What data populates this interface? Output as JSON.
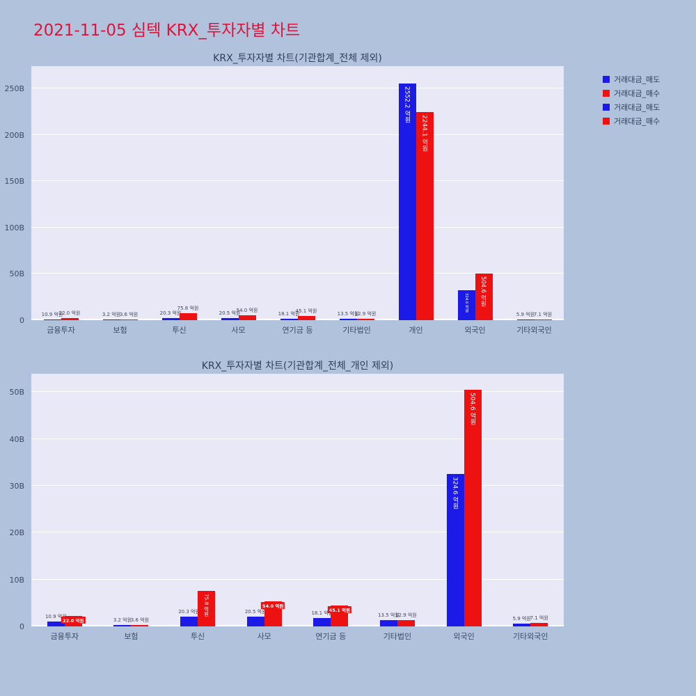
{
  "page": {
    "title": "2021-11-05 심텍 KRX_투자자별 차트",
    "title_color": "#dc143c",
    "background": "#b0c2dc"
  },
  "legend": {
    "entries": [
      {
        "label": "거래대금_매도",
        "color": "#1b1ae6"
      },
      {
        "label": "거래대금_매수",
        "color": "#ee1111"
      },
      {
        "label": "거래대금_매도",
        "color": "#1b1ae6"
      },
      {
        "label": "거래대금_매수",
        "color": "#ee1111"
      }
    ]
  },
  "chart_data": [
    {
      "type": "bar",
      "title": "KRX_투자자별 차트(기관합계_전체 제외)",
      "unit": "억원",
      "categories": [
        "금융투자",
        "보험",
        "투신",
        "사모",
        "연기금 등",
        "기타법인",
        "개인",
        "외국인",
        "기타외국인"
      ],
      "series": [
        {
          "name": "거래대금_매도",
          "color": "#1b1ae6",
          "values_eokwon": [
            10.9,
            3.2,
            20.3,
            20.5,
            18.1,
            13.5,
            2552.2,
            324.6,
            5.9
          ]
        },
        {
          "name": "거래대금_매수",
          "color": "#ee1111",
          "values_eokwon": [
            22.0,
            3.6,
            75.8,
            54.0,
            45.1,
            12.9,
            2244.1,
            504.6,
            7.1
          ]
        }
      ],
      "yticks": [
        {
          "label": "0",
          "b": 0
        },
        {
          "label": "50B",
          "b": 50
        },
        {
          "label": "100B",
          "b": 100
        },
        {
          "label": "150B",
          "b": 150
        },
        {
          "label": "200B",
          "b": 200
        },
        {
          "label": "250B",
          "b": 250
        }
      ],
      "ylim_b": [
        0,
        274
      ],
      "plot_bg": "#e8e8f6",
      "grid": true,
      "legend_position": "right-top"
    },
    {
      "type": "bar",
      "title": "KRX_투자자별 차트(기관합계_전체_개인 제외)",
      "unit": "억원",
      "categories": [
        "금융투자",
        "보험",
        "투신",
        "사모",
        "연기금 등",
        "기타법인",
        "외국인",
        "기타외국인"
      ],
      "series": [
        {
          "name": "거래대금_매도",
          "color": "#1b1ae6",
          "values_eokwon": [
            10.9,
            3.2,
            20.3,
            20.5,
            18.1,
            13.5,
            324.6,
            5.9
          ]
        },
        {
          "name": "거래대금_매수",
          "color": "#ee1111",
          "values_eokwon": [
            22.0,
            3.6,
            75.8,
            54.0,
            45.1,
            12.9,
            504.6,
            7.1
          ]
        }
      ],
      "yticks": [
        {
          "label": "0",
          "b": 0
        },
        {
          "label": "10B",
          "b": 10
        },
        {
          "label": "20B",
          "b": 20
        },
        {
          "label": "30B",
          "b": 30
        },
        {
          "label": "40B",
          "b": 40
        },
        {
          "label": "50B",
          "b": 50
        }
      ],
      "ylim_b": [
        0,
        53.9
      ],
      "plot_bg": "#e8e8f6",
      "grid": true,
      "legend_position": "none"
    }
  ]
}
